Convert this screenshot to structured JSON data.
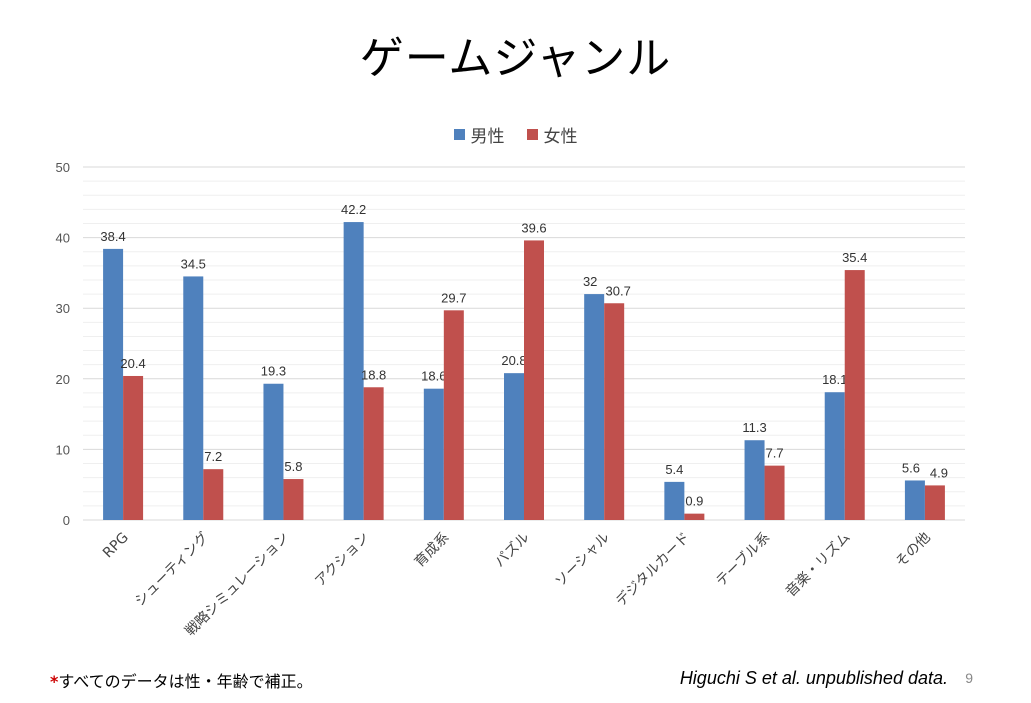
{
  "slide": {
    "title": "ゲームジャンル",
    "footnote_mark": "*",
    "footnote_text": "すべてのデータは性・年齢で補正。",
    "citation": "Higuchi S et al. unpublished data.",
    "page_number": "9"
  },
  "chart_data": {
    "type": "bar",
    "title": "",
    "xlabel": "",
    "ylabel": "",
    "ylim": [
      0,
      50
    ],
    "yticks": [
      0,
      10,
      20,
      30,
      40,
      50
    ],
    "grid": true,
    "legend_position": "top-center",
    "categories": [
      "RPG",
      "シューティング",
      "戦略シミュレーション",
      "アクション",
      "育成系",
      "パズル",
      "ソーシャル",
      "デジタルカード",
      "テーブル系",
      "音楽・リズム",
      "その他"
    ],
    "series": [
      {
        "name": "男性",
        "color": "#4f81bd",
        "values": [
          38.4,
          34.5,
          19.3,
          42.2,
          18.6,
          20.8,
          32,
          5.4,
          11.3,
          18.1,
          5.6
        ]
      },
      {
        "name": "女性",
        "color": "#c0504d",
        "values": [
          20.4,
          7.2,
          5.8,
          18.8,
          29.7,
          39.6,
          30.7,
          0.9,
          7.7,
          35.4,
          4.9
        ]
      }
    ]
  }
}
